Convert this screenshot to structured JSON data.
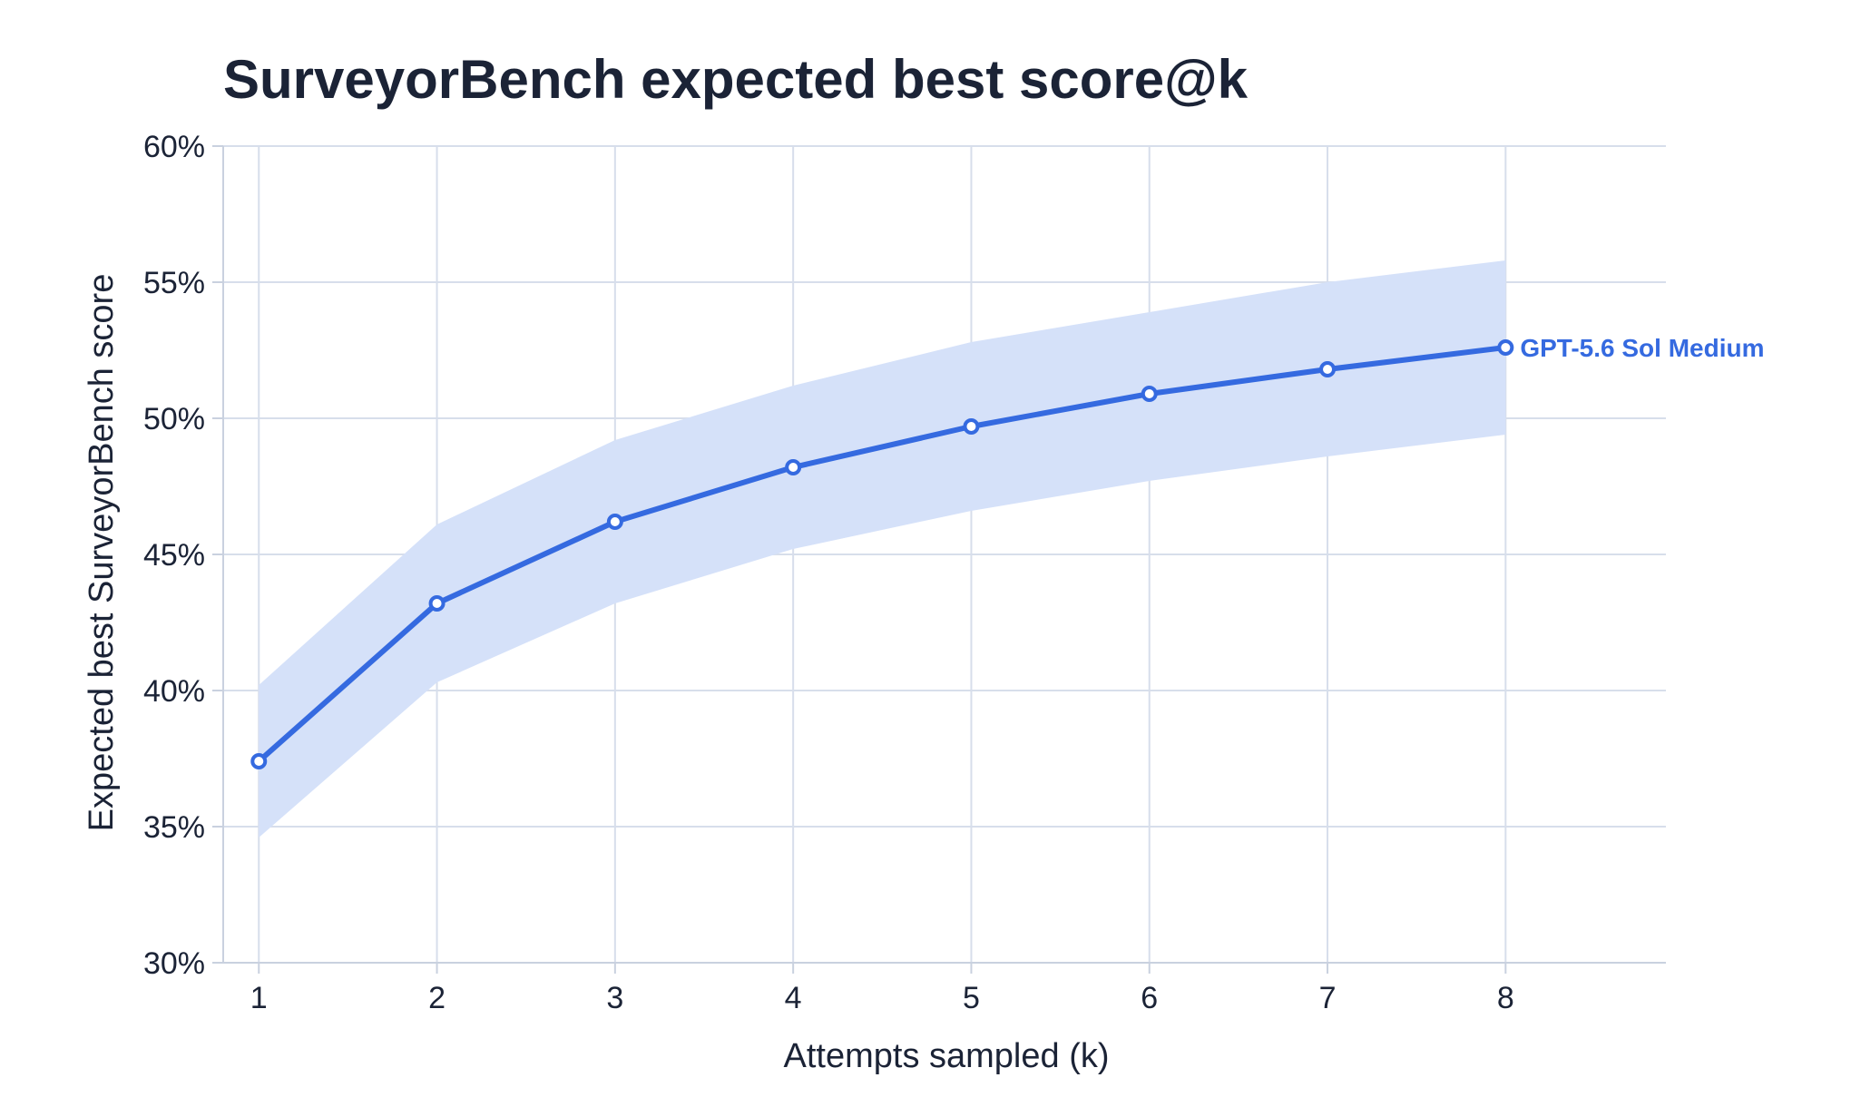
{
  "chart_data": {
    "type": "line",
    "title": "SurveyorBench expected best score@k",
    "xlabel": "Attempts sampled (k)",
    "ylabel": "Expected best SurveyorBench score",
    "x": [
      1,
      2,
      3,
      4,
      5,
      6,
      7,
      8
    ],
    "x_tick_labels": [
      "1",
      "2",
      "3",
      "4",
      "5",
      "6",
      "7",
      "8"
    ],
    "xlim": [
      0.8,
      8.9
    ],
    "ylim": [
      30,
      60
    ],
    "y_ticks": [
      30,
      35,
      40,
      45,
      50,
      55,
      60
    ],
    "y_tick_labels": [
      "30%",
      "35%",
      "40%",
      "45%",
      "50%",
      "55%",
      "60%"
    ],
    "grid": true,
    "series": [
      {
        "name": "GPT-5.6 Sol Medium",
        "values": [
          37.4,
          43.2,
          46.2,
          48.2,
          49.7,
          50.9,
          51.8,
          52.6
        ],
        "band_lower": [
          34.6,
          40.3,
          43.2,
          45.2,
          46.6,
          47.7,
          48.6,
          49.4
        ],
        "band_upper": [
          40.2,
          46.1,
          49.2,
          51.2,
          52.8,
          53.9,
          55.0,
          55.8
        ],
        "color": "#356ae0",
        "band_color": "#d5e1f9"
      }
    ]
  }
}
